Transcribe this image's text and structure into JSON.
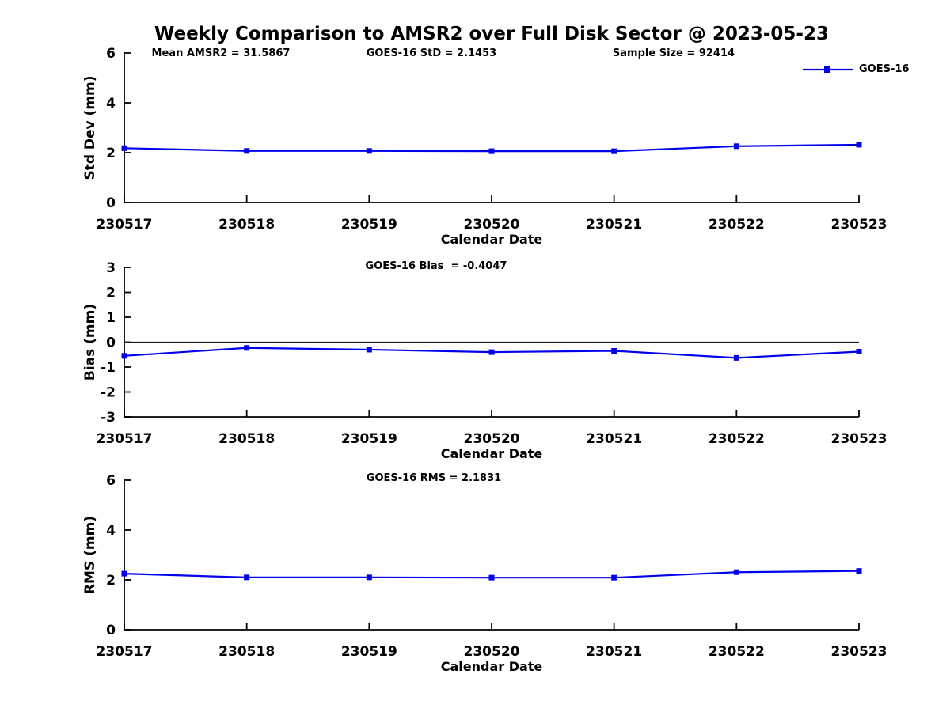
{
  "title": "Weekly Comparison to AMSR2 over Full Disk Sector @ 2023-05-23",
  "annotations": {
    "mean_amsr2": "Mean AMSR2 = 31.5867",
    "goes16_std": "GOES-16 StD = 2.1453",
    "sample_size": "Sample Size = 92414",
    "goes16_bias": "GOES-16 Bias  = -0.4047",
    "goes16_rms": "GOES-16 RMS = 2.1831"
  },
  "legend": {
    "label": "GOES-16",
    "color": "#0000EE",
    "marker": "filled-square",
    "position": "top-right"
  },
  "colors": {
    "series": "#0000EE",
    "axis": "#000000",
    "zero_line": "#1a1a1a",
    "text": "#000000",
    "background": "#ffffff"
  },
  "chart_data": [
    {
      "type": "line",
      "panel": "std_dev",
      "title": "",
      "x": [
        "230517",
        "230518",
        "230519",
        "230520",
        "230521",
        "230522",
        "230523"
      ],
      "series": [
        {
          "name": "GOES-16",
          "values": [
            2.18,
            2.07,
            2.07,
            2.06,
            2.06,
            2.26,
            2.32
          ]
        }
      ],
      "xlabel": "Calendar Date",
      "ylabel": "Std Dev (mm)",
      "ylim": [
        0,
        6
      ],
      "yticks": [
        0,
        2,
        4,
        6
      ],
      "grid": false,
      "marker": "square",
      "zero_line": false
    },
    {
      "type": "line",
      "panel": "bias",
      "title": "",
      "x": [
        "230517",
        "230518",
        "230519",
        "230520",
        "230521",
        "230522",
        "230523"
      ],
      "series": [
        {
          "name": "GOES-16",
          "values": [
            -0.55,
            -0.23,
            -0.3,
            -0.4,
            -0.35,
            -0.63,
            -0.38
          ]
        }
      ],
      "xlabel": "Calendar Date",
      "ylabel": "Bias (mm)",
      "ylim": [
        -3,
        3
      ],
      "yticks": [
        -3,
        -2,
        -1,
        0,
        1,
        2,
        3
      ],
      "grid": false,
      "marker": "square",
      "zero_line": true
    },
    {
      "type": "line",
      "panel": "rms",
      "title": "",
      "x": [
        "230517",
        "230518",
        "230519",
        "230520",
        "230521",
        "230522",
        "230523"
      ],
      "series": [
        {
          "name": "GOES-16",
          "values": [
            2.25,
            2.1,
            2.1,
            2.09,
            2.09,
            2.31,
            2.36
          ]
        }
      ],
      "xlabel": "Calendar Date",
      "ylabel": "RMS (mm)",
      "ylim": [
        0,
        6
      ],
      "yticks": [
        0,
        2,
        4,
        6
      ],
      "grid": false,
      "marker": "square",
      "zero_line": false
    }
  ]
}
